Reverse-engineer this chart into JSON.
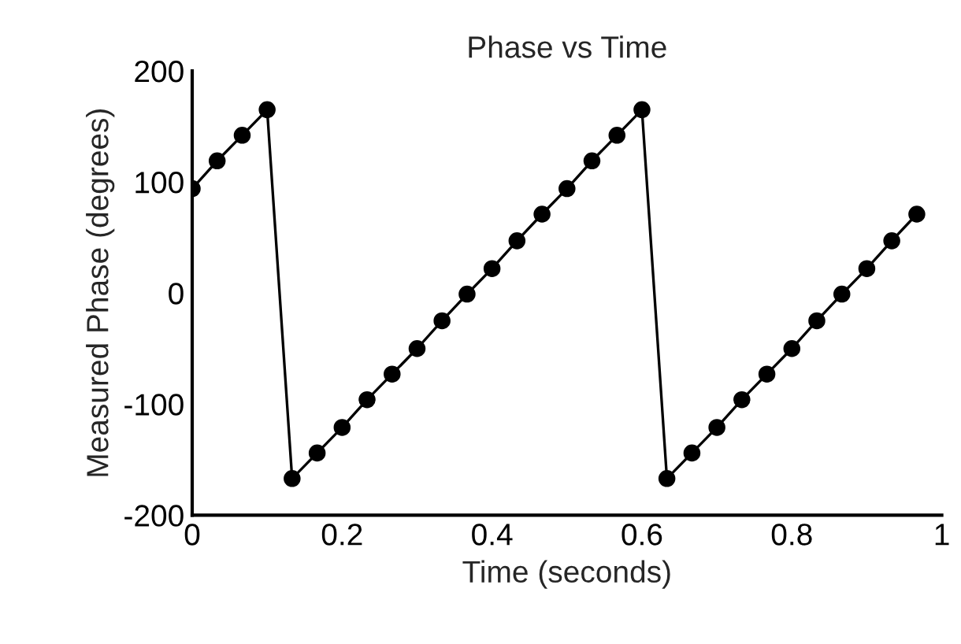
{
  "chart_data": {
    "type": "line",
    "title": "Phase vs Time",
    "xlabel": "Time (seconds)",
    "ylabel": "Measured Phase (degrees)",
    "x": [
      0,
      0.0333,
      0.0667,
      0.1,
      0.1333,
      0.1667,
      0.2,
      0.2333,
      0.2667,
      0.3,
      0.3333,
      0.3667,
      0.4,
      0.4333,
      0.4667,
      0.5,
      0.5333,
      0.5667,
      0.6,
      0.6333,
      0.6667,
      0.7,
      0.7333,
      0.7667,
      0.8,
      0.8333,
      0.8667,
      0.9,
      0.9333,
      0.9667
    ],
    "series": [
      {
        "color": "#000000",
        "values": [
          94,
          119,
          142,
          165,
          -167,
          -144,
          -121,
          -96,
          -73,
          -50,
          -25,
          -1,
          22,
          47,
          71,
          94,
          119,
          142,
          165,
          -167,
          -144,
          -121,
          -96,
          -73,
          -50,
          -25,
          -1,
          22,
          47,
          71
        ]
      }
    ],
    "xlim": [
      0,
      1
    ],
    "xticks": [
      0,
      0.2,
      0.4,
      0.6,
      0.8,
      1
    ],
    "ylim": [
      -200,
      200
    ],
    "yticks": [
      -200,
      -100,
      0,
      100,
      200
    ],
    "marker": "circle",
    "line_style": "solid",
    "grid": false,
    "legend": false
  }
}
